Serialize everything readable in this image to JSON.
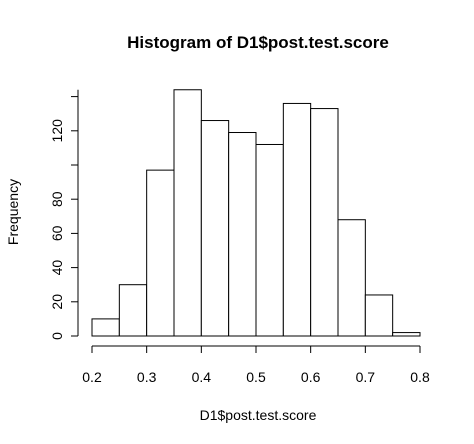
{
  "chart_data": {
    "type": "bar",
    "title": "Histogram of D1$post.test.score",
    "xlabel": "D1$post.test.score",
    "ylabel": "Frequency",
    "bins": [
      {
        "start": 0.2,
        "end": 0.25,
        "count": 10
      },
      {
        "start": 0.25,
        "end": 0.3,
        "count": 30
      },
      {
        "start": 0.3,
        "end": 0.35,
        "count": 97
      },
      {
        "start": 0.35,
        "end": 0.4,
        "count": 144
      },
      {
        "start": 0.4,
        "end": 0.45,
        "count": 126
      },
      {
        "start": 0.45,
        "end": 0.5,
        "count": 119
      },
      {
        "start": 0.5,
        "end": 0.55,
        "count": 112
      },
      {
        "start": 0.55,
        "end": 0.6,
        "count": 136
      },
      {
        "start": 0.6,
        "end": 0.65,
        "count": 133
      },
      {
        "start": 0.65,
        "end": 0.7,
        "count": 68
      },
      {
        "start": 0.7,
        "end": 0.75,
        "count": 24
      },
      {
        "start": 0.75,
        "end": 0.8,
        "count": 2
      }
    ],
    "x_ticks": [
      "0.2",
      "0.3",
      "0.4",
      "0.5",
      "0.6",
      "0.7",
      "0.8"
    ],
    "y_ticks": [
      "0",
      "20",
      "40",
      "60",
      "80",
      "120"
    ],
    "xlim": [
      0.2,
      0.8
    ],
    "ylim": [
      0,
      144
    ],
    "grid": false
  }
}
